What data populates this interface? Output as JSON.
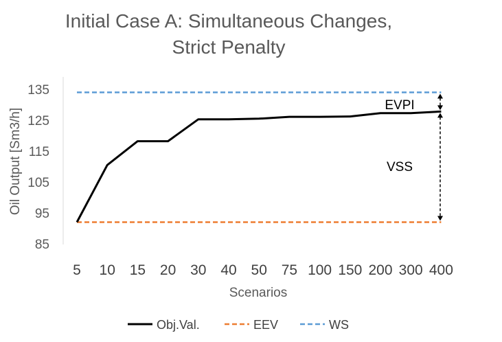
{
  "chart_data": {
    "type": "line",
    "title_lines": [
      "Initial Case A: Simultaneous Changes,",
      "Strict Penalty"
    ],
    "xlabel": "Scenarios",
    "ylabel": "Oil Output [Sm3/h]",
    "categories": [
      "5",
      "10",
      "15",
      "20",
      "30",
      "40",
      "50",
      "75",
      "100",
      "150",
      "200",
      "300",
      "400"
    ],
    "ylim": [
      85,
      135
    ],
    "yticks": [
      "85",
      "95",
      "105",
      "115",
      "125",
      "135"
    ],
    "grid": false,
    "legend_position": "bottom",
    "series": [
      {
        "name": "Obj.Val.",
        "color": "#000000",
        "dash": "solid",
        "values": [
          92,
          110.5,
          118.2,
          118.2,
          125.3,
          125.3,
          125.5,
          126.1,
          126.1,
          126.2,
          127.3,
          127.3,
          127.8
        ]
      },
      {
        "name": "EEV",
        "color": "#ED7D31",
        "dash": "dashed",
        "values": [
          92,
          92,
          92,
          92,
          92,
          92,
          92,
          92,
          92,
          92,
          92,
          92,
          92
        ]
      },
      {
        "name": "WS",
        "color": "#5B9BD5",
        "dash": "dashed",
        "values": [
          134,
          134,
          134,
          134,
          134,
          134,
          134,
          134,
          134,
          134,
          134,
          134,
          134
        ]
      }
    ],
    "annotations": [
      {
        "label": "EVPI",
        "from": 127.8,
        "to": 134
      },
      {
        "label": "VSS",
        "from": 92,
        "to": 127.8
      }
    ]
  }
}
